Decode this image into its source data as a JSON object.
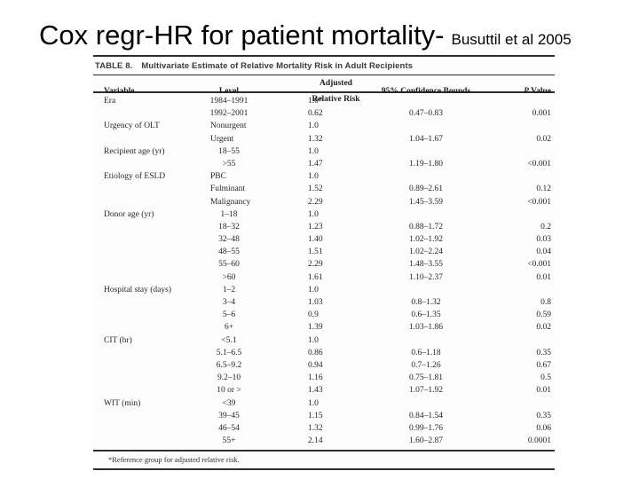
{
  "slide": {
    "title": "Cox regr-HR for patient mortality-",
    "citation": "Busuttil et al 2005"
  },
  "table": {
    "caption_label": "TABLE 8.",
    "caption_text": "Multivariate Estimate of Relative Mortality Risk in Adult Recipients",
    "columns": {
      "variable": "Variable",
      "level": "Level",
      "arr": "Adjusted Relative Risk",
      "cb": "95% Confidence Bounds",
      "p": "P Value"
    },
    "rows": [
      {
        "variable": "Era",
        "level": "1984–1991",
        "arr": "1.0*",
        "cb": "",
        "p": ""
      },
      {
        "variable": "",
        "level": "1992–2001",
        "arr": "0.62",
        "cb": "0.47–0.83",
        "p": "0.001"
      },
      {
        "variable": "Urgency of OLT",
        "level": "Nonurgent",
        "arr": "1.0",
        "cb": "",
        "p": ""
      },
      {
        "variable": "",
        "level": "Urgent",
        "arr": "1.32",
        "cb": "1.04–1.67",
        "p": "0.02"
      },
      {
        "variable": "Recipient age (yr)",
        "level": "18–55",
        "arr": "1.0",
        "cb": "",
        "p": ""
      },
      {
        "variable": "",
        "level": ">55",
        "arr": "1.47",
        "cb": "1.19–1.80",
        "p": "<0.001"
      },
      {
        "variable": "Etiology of ESLD",
        "level": "PBC",
        "arr": "1.0",
        "cb": "",
        "p": ""
      },
      {
        "variable": "",
        "level": "Fulminant",
        "arr": "1.52",
        "cb": "0.89–2.61",
        "p": "0.12"
      },
      {
        "variable": "",
        "level": "Malignancy",
        "arr": "2.29",
        "cb": "1.45–3.59",
        "p": "<0.001"
      },
      {
        "variable": "Donor age (yr)",
        "level": "1–18",
        "arr": "1.0",
        "cb": "",
        "p": ""
      },
      {
        "variable": "",
        "level": "18–32",
        "arr": "1.23",
        "cb": "0.88–1.72",
        "p": "0.2"
      },
      {
        "variable": "",
        "level": "32–48",
        "arr": "1.40",
        "cb": "1.02–1.92",
        "p": "0.03"
      },
      {
        "variable": "",
        "level": "48–55",
        "arr": "1.51",
        "cb": "1.02–2.24",
        "p": "0.04"
      },
      {
        "variable": "",
        "level": "55–60",
        "arr": "2.29",
        "cb": "1.48–3.55",
        "p": "<0.001"
      },
      {
        "variable": "",
        "level": ">60",
        "arr": "1.61",
        "cb": "1.10–2.37",
        "p": "0.01"
      },
      {
        "variable": "Hospital stay (days)",
        "level": "1–2",
        "arr": "1.0",
        "cb": "",
        "p": ""
      },
      {
        "variable": "",
        "level": "3–4",
        "arr": "1.03",
        "cb": "0.8–1.32",
        "p": "0.8"
      },
      {
        "variable": "",
        "level": "5–6",
        "arr": "0.9",
        "cb": "0.6–1.35",
        "p": "0.59"
      },
      {
        "variable": "",
        "level": "6+",
        "arr": "1.39",
        "cb": "1.03–1.86",
        "p": "0.02"
      },
      {
        "variable": "CIT (hr)",
        "level": "<5.1",
        "arr": "1.0",
        "cb": "",
        "p": ""
      },
      {
        "variable": "",
        "level": "5.1–6.5",
        "arr": "0.86",
        "cb": "0.6–1.18",
        "p": "0.35"
      },
      {
        "variable": "",
        "level": "6.5–9.2",
        "arr": "0.94",
        "cb": "0.7–1.26",
        "p": "0.67"
      },
      {
        "variable": "",
        "level": "9.2–10",
        "arr": "1.16",
        "cb": "0.75–1.81",
        "p": "0.5"
      },
      {
        "variable": "",
        "level": "10 or >",
        "arr": "1.43",
        "cb": "1.07–1.92",
        "p": "0.01"
      },
      {
        "variable": "WIT (min)",
        "level": "<39",
        "arr": "1.0",
        "cb": "",
        "p": ""
      },
      {
        "variable": "",
        "level": "39–45",
        "arr": "1.15",
        "cb": "0.84–1.54",
        "p": "0.35"
      },
      {
        "variable": "",
        "level": "46–54",
        "arr": "1.32",
        "cb": "0.99–1.76",
        "p": "0.06"
      },
      {
        "variable": "",
        "level": "55+",
        "arr": "2.14",
        "cb": "1.60–2.87",
        "p": "0.0001"
      }
    ],
    "footnote": "*Reference group for adjusted relative risk."
  }
}
